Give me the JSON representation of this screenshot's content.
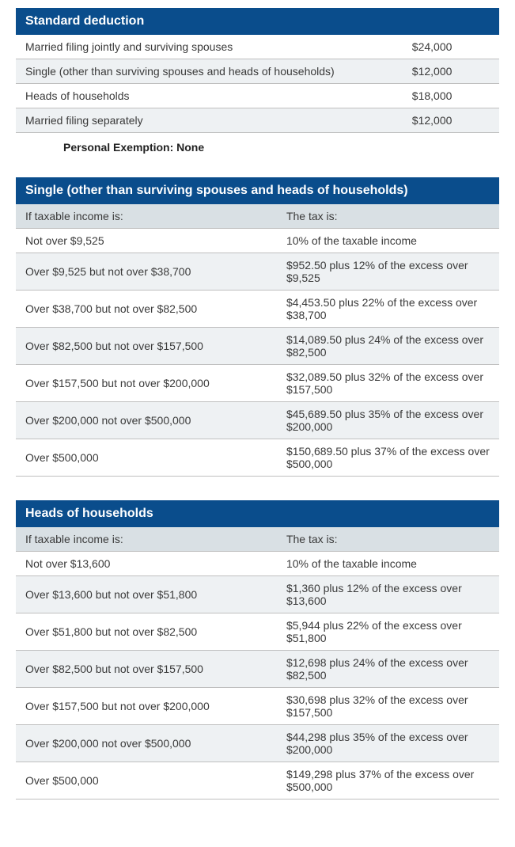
{
  "colors": {
    "header_bg": "#0a4d8c",
    "header_text": "#ffffff",
    "row_even": "#ffffff",
    "row_odd": "#eef1f3",
    "subheader_bg": "#d9e0e4",
    "border": "#bfbfbf",
    "text": "#3a3a3a"
  },
  "standard_deduction": {
    "title": "Standard deduction",
    "rows": [
      {
        "label": "Married filing jointly and surviving spouses",
        "amount": "$24,000"
      },
      {
        "label": "Single (other than surviving spouses and heads of households)",
        "amount": "$12,000"
      },
      {
        "label": "Heads of households",
        "amount": "$18,000"
      },
      {
        "label": "Married filing separately",
        "amount": "$12,000"
      }
    ],
    "note": "Personal Exemption: None"
  },
  "single_brackets": {
    "title": "Single (other than surviving spouses and heads of households)",
    "col1_header": "If taxable income is:",
    "col2_header": "The tax is:",
    "rows": [
      {
        "income": "Not over $9,525",
        "tax": "10% of the taxable income"
      },
      {
        "income": "Over $9,525 but not over $38,700",
        "tax": "$952.50 plus 12% of the excess over $9,525"
      },
      {
        "income": "Over $38,700 but not over $82,500",
        "tax": "$4,453.50 plus 22% of the excess over $38,700"
      },
      {
        "income": "Over $82,500 but not over $157,500",
        "tax": "$14,089.50 plus 24% of the excess over $82,500"
      },
      {
        "income": "Over $157,500 but not over $200,000",
        "tax": "$32,089.50 plus 32% of the excess over $157,500"
      },
      {
        "income": "Over $200,000 not over $500,000",
        "tax": "$45,689.50 plus 35% of the excess over $200,000"
      },
      {
        "income": "Over $500,000",
        "tax": "$150,689.50 plus 37% of the excess over $500,000"
      }
    ]
  },
  "hoh_brackets": {
    "title": "Heads of households",
    "col1_header": "If taxable income is:",
    "col2_header": "The tax is:",
    "rows": [
      {
        "income": "Not over $13,600",
        "tax": "10% of the taxable income"
      },
      {
        "income": "Over $13,600 but not over $51,800",
        "tax": "$1,360 plus 12% of the excess over $13,600"
      },
      {
        "income": "Over $51,800 but not over $82,500",
        "tax": "$5,944 plus 22% of the excess over $51,800"
      },
      {
        "income": "Over $82,500 but not over $157,500",
        "tax": "$12,698 plus 24% of the excess over $82,500"
      },
      {
        "income": "Over $157,500 but not over $200,000",
        "tax": "$30,698 plus 32% of the excess over $157,500"
      },
      {
        "income": "Over $200,000 not over $500,000",
        "tax": "$44,298 plus 35% of the excess over $200,000"
      },
      {
        "income": "Over $500,000",
        "tax": "$149,298 plus 37% of the excess over $500,000"
      }
    ]
  }
}
